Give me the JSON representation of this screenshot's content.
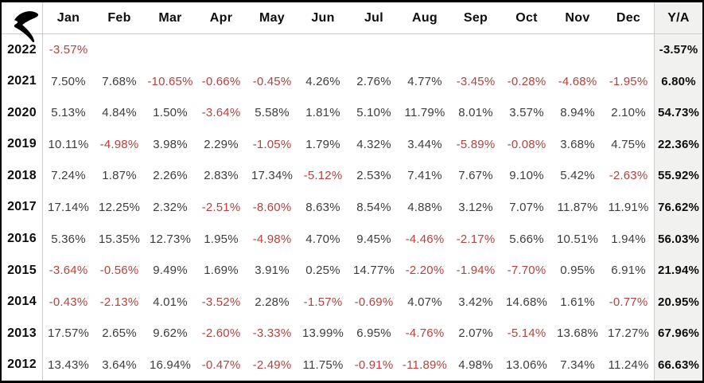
{
  "icons": {
    "logo": "r-swoosh-brand-logo"
  },
  "colors": {
    "negative": "#b9403d",
    "text": "#3d3d3c",
    "heading": "#0d0d0d",
    "ya_bg": "#f1f1f0",
    "grid_line": "#cccccc",
    "frame_border": "#000000",
    "bg": "#ffffff"
  },
  "chart_data": {
    "type": "table",
    "title": "",
    "columns": [
      "Jan",
      "Feb",
      "Mar",
      "Apr",
      "May",
      "Jun",
      "Jul",
      "Aug",
      "Sep",
      "Oct",
      "Nov",
      "Dec",
      "Y/A"
    ],
    "row_header": "year",
    "rows": [
      {
        "year": "2022",
        "monthly": [
          "-3.57%",
          "",
          "",
          "",
          "",
          "",
          "",
          "",
          "",
          "",
          "",
          ""
        ],
        "yearly": "-3.57%"
      },
      {
        "year": "2021",
        "monthly": [
          "7.50%",
          "7.68%",
          "-10.65%",
          "-0.66%",
          "-0.45%",
          "4.26%",
          "2.76%",
          "4.77%",
          "-3.45%",
          "-0.28%",
          "-4.68%",
          "-1.95%"
        ],
        "yearly": "6.80%"
      },
      {
        "year": "2020",
        "monthly": [
          "5.13%",
          "4.84%",
          "1.50%",
          "-3.64%",
          "5.58%",
          "1.81%",
          "5.10%",
          "11.79%",
          "8.01%",
          "3.57%",
          "8.94%",
          "2.10%"
        ],
        "yearly": "54.73%"
      },
      {
        "year": "2019",
        "monthly": [
          "10.11%",
          "-4.98%",
          "3.98%",
          "2.29%",
          "-1.05%",
          "1.79%",
          "4.32%",
          "3.44%",
          "-5.89%",
          "-0.08%",
          "3.68%",
          "4.75%"
        ],
        "yearly": "22.36%"
      },
      {
        "year": "2018",
        "monthly": [
          "7.24%",
          "1.87%",
          "2.26%",
          "2.83%",
          "17.34%",
          "-5.12%",
          "2.53%",
          "7.41%",
          "7.67%",
          "9.10%",
          "5.42%",
          "-2.63%"
        ],
        "yearly": "55.92%"
      },
      {
        "year": "2017",
        "monthly": [
          "17.14%",
          "12.25%",
          "2.32%",
          "-2.51%",
          "-8.60%",
          "8.63%",
          "8.54%",
          "4.88%",
          "3.12%",
          "7.07%",
          "11.87%",
          "11.91%"
        ],
        "yearly": "76.62%"
      },
      {
        "year": "2016",
        "monthly": [
          "5.36%",
          "15.35%",
          "12.73%",
          "1.95%",
          "-4.98%",
          "4.70%",
          "9.45%",
          "-4.46%",
          "-2.17%",
          "5.66%",
          "10.51%",
          "1.94%"
        ],
        "yearly": "56.03%"
      },
      {
        "year": "2015",
        "monthly": [
          "-3.64%",
          "-0.56%",
          "9.49%",
          "1.69%",
          "3.91%",
          "0.25%",
          "14.77%",
          "-2.20%",
          "-1.94%",
          "-7.70%",
          "0.95%",
          "6.91%"
        ],
        "yearly": "21.94%"
      },
      {
        "year": "2014",
        "monthly": [
          "-0.43%",
          "-2.13%",
          "4.01%",
          "-3.52%",
          "2.28%",
          "-1.57%",
          "-0.69%",
          "4.07%",
          "3.42%",
          "14.68%",
          "1.61%",
          "-0.77%"
        ],
        "yearly": "20.95%"
      },
      {
        "year": "2013",
        "monthly": [
          "17.57%",
          "2.65%",
          "9.62%",
          "-2.60%",
          "-3.33%",
          "13.99%",
          "6.95%",
          "-4.76%",
          "2.07%",
          "-5.14%",
          "13.68%",
          "17.27%"
        ],
        "yearly": "67.96%"
      },
      {
        "year": "2012",
        "monthly": [
          "13.43%",
          "3.64%",
          "16.94%",
          "-0.47%",
          "-2.49%",
          "11.75%",
          "-0.91%",
          "-11.89%",
          "4.98%",
          "13.06%",
          "7.34%",
          "11.24%"
        ],
        "yearly": "66.63%"
      }
    ],
    "legend_position": "none",
    "grid": "partial",
    "notes": "negative monthly values shown in red; Y/A yearly total column bold on gray background"
  }
}
